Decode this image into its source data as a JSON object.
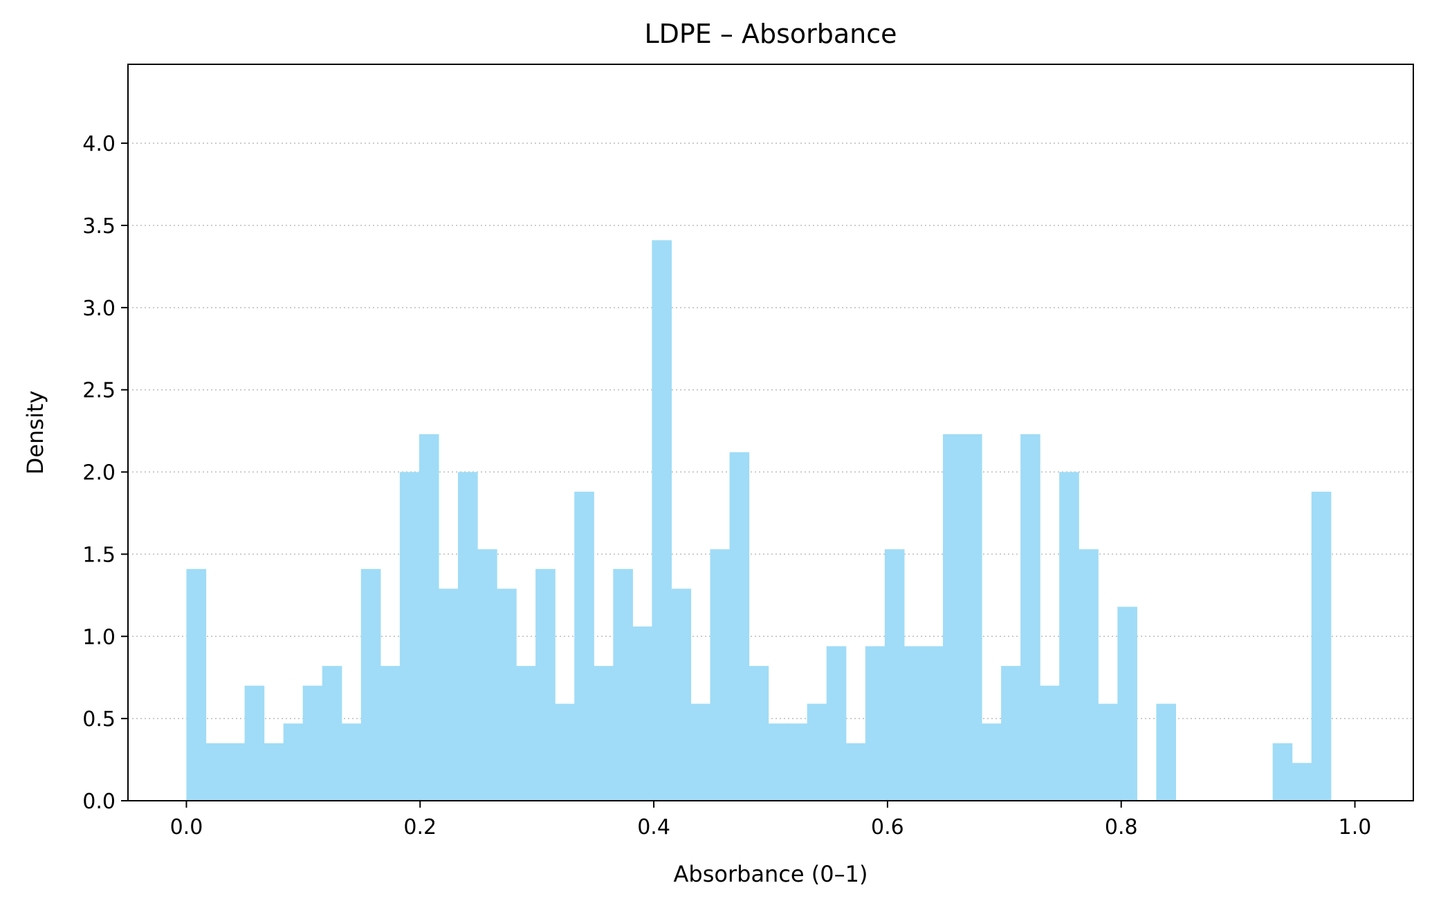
{
  "chart_data": {
    "type": "histogram",
    "title": "LDPE – Absorbance",
    "xlabel": "Absorbance (0–1)",
    "ylabel": "Density",
    "xlim": [
      -0.05,
      1.05
    ],
    "ylim": [
      0,
      4.48
    ],
    "bin_width": 0.0166,
    "bin_start": 0.0,
    "values": [
      1.41,
      0.35,
      0.35,
      0.7,
      0.35,
      0.47,
      0.7,
      0.82,
      0.47,
      1.41,
      0.82,
      2.0,
      2.23,
      1.29,
      2.0,
      1.53,
      1.29,
      0.82,
      1.41,
      0.59,
      1.88,
      0.82,
      1.41,
      1.06,
      3.41,
      1.29,
      0.59,
      1.53,
      2.12,
      0.82,
      0.47,
      0.47,
      0.59,
      0.94,
      0.35,
      0.94,
      1.53,
      0.94,
      0.94,
      2.23,
      2.23,
      0.47,
      0.82,
      2.23,
      0.7,
      2.0,
      1.53,
      0.59,
      1.18,
      0.0,
      0.59,
      0.0,
      0.0,
      0.0,
      0.0,
      0.0,
      0.35,
      0.23,
      1.88
    ],
    "xticks": [
      0.0,
      0.2,
      0.4,
      0.6,
      0.8,
      1.0
    ],
    "xtick_labels": [
      "0.0",
      "0.2",
      "0.4",
      "0.6",
      "0.8",
      "1.0"
    ],
    "yticks": [
      0.0,
      0.5,
      1.0,
      1.5,
      2.0,
      2.5,
      3.0,
      3.5,
      4.0
    ],
    "ytick_labels": [
      "0.0",
      "0.5",
      "1.0",
      "1.5",
      "2.0",
      "2.5",
      "3.0",
      "3.5",
      "4.0"
    ],
    "grid": "y-dotted",
    "colors": {
      "bar": "#a0dcf7",
      "grid": "#bbbbbb",
      "axis": "#000000"
    }
  }
}
